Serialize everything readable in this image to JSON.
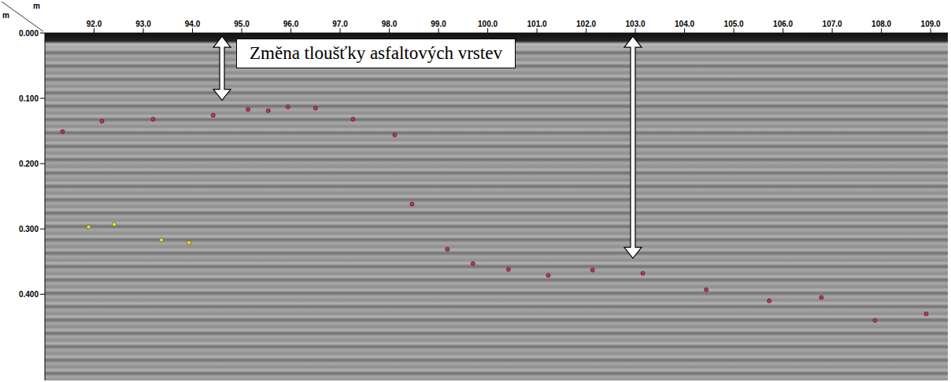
{
  "chart_data": {
    "type": "scatter",
    "title": "Změna tloušťky asfaltových vrstev",
    "xlabel": "m",
    "ylabel": "m",
    "xlim": [
      91.0,
      109.35
    ],
    "xticks": [
      {
        "value": 92,
        "label": "92.0"
      },
      {
        "value": 93,
        "label": "93.0"
      },
      {
        "value": 94,
        "label": "94.0"
      },
      {
        "value": 95,
        "label": "95.0"
      },
      {
        "value": 96,
        "label": "96.0"
      },
      {
        "value": 97,
        "label": "97.0"
      },
      {
        "value": 98,
        "label": "98.0"
      },
      {
        "value": 99,
        "label": "99.0"
      },
      {
        "value": 100,
        "label": "100.0"
      },
      {
        "value": 101,
        "label": "101.0"
      },
      {
        "value": 102,
        "label": "102.0"
      },
      {
        "value": 103,
        "label": "103.0"
      },
      {
        "value": 104,
        "label": "104.0"
      },
      {
        "value": 105,
        "label": "105.0"
      },
      {
        "value": 106,
        "label": "106.0"
      },
      {
        "value": 107,
        "label": "107.0"
      },
      {
        "value": 108,
        "label": "108.0"
      },
      {
        "value": 109,
        "label": "109.0"
      }
    ],
    "ylim": [
      0,
      0.532
    ],
    "yticks": [
      {
        "value": 0,
        "label": "0.000"
      },
      {
        "value": 0.1,
        "label": "0.100"
      },
      {
        "value": 0.2,
        "label": "0.200"
      },
      {
        "value": 0.3,
        "label": "0.300"
      },
      {
        "value": 0.4,
        "label": "0.400"
      }
    ],
    "grid": false,
    "series": [
      {
        "color": "#c0305a",
        "marker": "circle",
        "x": [
          91.36,
          92.16,
          93.2,
          94.42,
          95.13,
          95.54,
          95.94,
          96.5,
          97.26,
          98.11
        ],
        "values": [
          0.151,
          0.135,
          0.132,
          0.126,
          0.117,
          0.119,
          0.113,
          0.115,
          0.132,
          0.156
        ]
      },
      {
        "color": "#c0305a",
        "marker": "circle",
        "x": [
          98.46,
          99.18,
          99.7,
          100.42,
          101.23,
          102.13,
          103.15,
          104.44,
          105.72,
          106.78,
          107.87,
          108.91
        ],
        "values": [
          0.262,
          0.331,
          0.353,
          0.362,
          0.371,
          0.363,
          0.368,
          0.393,
          0.41,
          0.405,
          0.44,
          0.43
        ]
      },
      {
        "color": "#e8e020",
        "marker": "circle",
        "x": [
          91.89,
          92.41,
          93.37,
          93.93
        ],
        "values": [
          0.297,
          0.293,
          0.317,
          0.321
        ]
      }
    ],
    "arrows": [
      {
        "x": 94.6,
        "y": [
          0.005,
          0.103
        ]
      },
      {
        "x": 102.95,
        "y": [
          0.005,
          0.345
        ]
      }
    ]
  }
}
